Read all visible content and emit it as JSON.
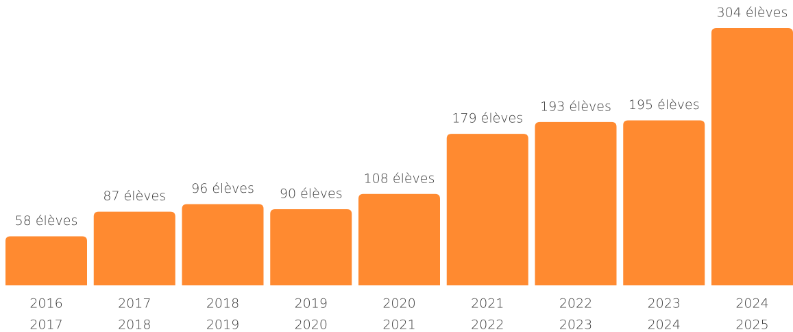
{
  "chart_data": {
    "type": "bar",
    "categories": [
      [
        "2016",
        "2017"
      ],
      [
        "2017",
        "2018"
      ],
      [
        "2018",
        "2019"
      ],
      [
        "2019",
        "2020"
      ],
      [
        "2020",
        "2021"
      ],
      [
        "2021",
        "2022"
      ],
      [
        "2022",
        "2023"
      ],
      [
        "2023",
        "2024"
      ],
      [
        "2024",
        "2025"
      ]
    ],
    "values": [
      58,
      87,
      96,
      90,
      108,
      179,
      193,
      195,
      304
    ],
    "value_labels": [
      "58 élèves",
      "87 élèves",
      "96 élèves",
      "90 élèves",
      "108 élèves",
      "179 élèves",
      "193 élèves",
      "195 élèves",
      "304 élèves"
    ],
    "color": "#ff8a30"
  }
}
